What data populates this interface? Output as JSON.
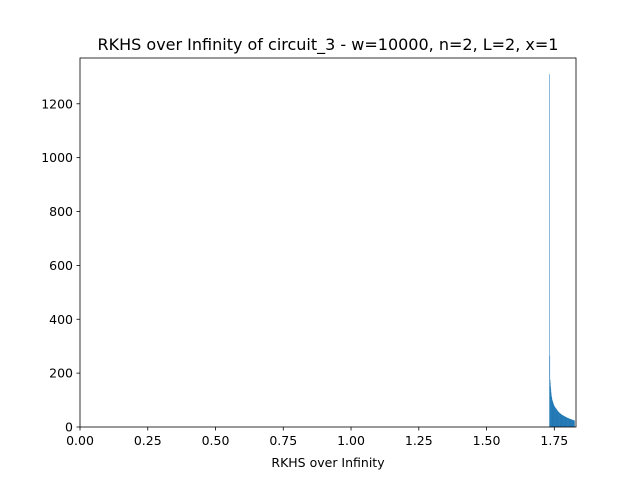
{
  "chart_data": {
    "type": "bar",
    "title": "RKHS over Infinity of circuit_3 - w=10000, n=2, L=2, x=1",
    "xlabel": "RKHS over Infinity",
    "ylabel": "",
    "xlim": [
      0.0,
      1.83
    ],
    "ylim": [
      0,
      1370
    ],
    "xticks": [
      0.0,
      0.25,
      0.5,
      0.75,
      1.0,
      1.25,
      1.5,
      1.75
    ],
    "xtick_labels": [
      "0.00",
      "0.25",
      "0.50",
      "0.75",
      "1.00",
      "1.25",
      "1.50",
      "1.75"
    ],
    "yticks": [
      0,
      200,
      400,
      600,
      800,
      1000,
      1200
    ],
    "ytick_labels": [
      "0",
      "200",
      "400",
      "600",
      "800",
      "1000",
      "1200"
    ],
    "grid": false,
    "bar_color": "#1f77b4",
    "bins": {
      "start": 1.7315,
      "width": 0.00098,
      "counts": [
        1310,
        265,
        175,
        165,
        150,
        140,
        128,
        118,
        112,
        108,
        100,
        98,
        95,
        92,
        88,
        86,
        82,
        80,
        78,
        76,
        75,
        73,
        72,
        70,
        70,
        68,
        66,
        65,
        64,
        62,
        60,
        60,
        58,
        57,
        56,
        55,
        54,
        53,
        52,
        52,
        50,
        50,
        49,
        48,
        47,
        46,
        46,
        45,
        44,
        44,
        43,
        43,
        42,
        42,
        41,
        40,
        40,
        40,
        39,
        38,
        38,
        37,
        37,
        36,
        36,
        35,
        35,
        34,
        34,
        33,
        33,
        33,
        32,
        32,
        31,
        31,
        30,
        30,
        30,
        29,
        29,
        29,
        28,
        28,
        27,
        27,
        27,
        26,
        26,
        26,
        25,
        25,
        25,
        24,
        24
      ]
    }
  }
}
